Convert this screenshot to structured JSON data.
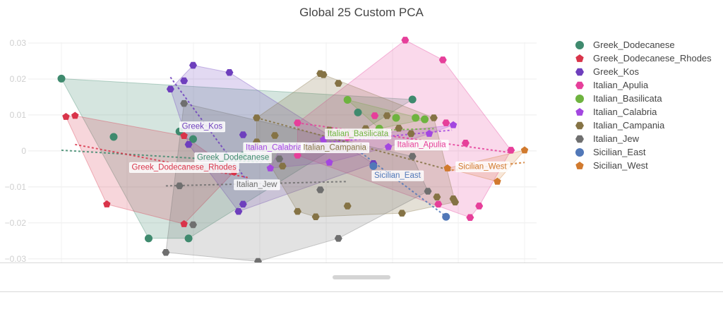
{
  "chart_data": {
    "type": "scatter",
    "title": "Global 25 Custom PCA",
    "xlabel": "",
    "ylabel": "",
    "xlim": [
      -0.0475,
      0.0545
    ],
    "ylim": [
      -0.031,
      0.0345
    ],
    "grid": true,
    "y_ticks": [
      {
        "value": 0.03,
        "label": "0.03"
      },
      {
        "value": 0.02,
        "label": "0.02"
      },
      {
        "value": 0.01,
        "label": "0.01"
      },
      {
        "value": 0,
        "label": "0"
      },
      {
        "value": -0.01,
        "label": "−0.01"
      },
      {
        "value": -0.02,
        "label": "−0.02"
      },
      {
        "value": -0.03,
        "label": "−0.03"
      }
    ],
    "legend_position": "right",
    "series": [
      {
        "name": "Greek_Dodecanese",
        "color": "#3f8a6e",
        "marker": "circle",
        "label": "Greek_Dodecanese",
        "label_at": [
          -0.0097,
          -0.0017
        ],
        "hull_fill": "rgba(63,138,110,0.22)",
        "trend": [
          [
            -0.0475,
            0.0002
          ],
          [
            -0.003,
            -0.0032
          ]
        ],
        "points": [
          [
            -0.0475,
            0.0201
          ],
          [
            -0.036,
            0.0039
          ],
          [
            -0.0283,
            -0.0243
          ],
          [
            -0.0215,
            0.0054
          ],
          [
            -0.0195,
            -0.0243
          ],
          [
            -0.0185,
            0.0033
          ],
          [
            -0.0075,
            -0.0013
          ],
          [
            0.0178,
            0.0107
          ],
          [
            0.0298,
            0.0143
          ]
        ]
      },
      {
        "name": "Greek_Dodecanese_Rhodes",
        "color": "#d9344a",
        "marker": "pentagon",
        "label": "Greek_Dodecanese_Rhodes",
        "label_at": [
          -0.0205,
          -0.0044
        ],
        "hull_fill": "rgba(217,52,74,0.2)",
        "trend": [
          [
            -0.0445,
            0.0018
          ],
          [
            -0.006,
            -0.0075
          ]
        ],
        "points": [
          [
            -0.0445,
            0.0098
          ],
          [
            -0.0375,
            -0.0148
          ],
          [
            -0.0205,
            -0.0203
          ],
          [
            -0.0205,
            0.0042
          ],
          [
            -0.0095,
            -0.0058
          ],
          [
            -0.0465,
            0.0095
          ]
        ]
      },
      {
        "name": "Greek_Kos",
        "color": "#6e3fbd",
        "marker": "hexagon",
        "label": "Greek_Kos",
        "label_at": [
          -0.0165,
          0.0069
        ],
        "hull_fill": "rgba(110,63,189,0.2)",
        "trend": [
          [
            -0.0235,
            0.0205
          ],
          [
            -0.0065,
            -0.0085
          ]
        ],
        "points": [
          [
            -0.0235,
            0.0172
          ],
          [
            -0.0205,
            0.0195
          ],
          [
            -0.0185,
            0.0238
          ],
          [
            -0.0105,
            0.0218
          ],
          [
            -0.0075,
            0.0045
          ],
          [
            -0.0085,
            -0.0168
          ],
          [
            -0.0075,
            -0.0148
          ],
          [
            -0.0195,
            0.0018
          ],
          [
            0.0008,
            0.0013
          ],
          [
            0.0212,
            -0.0035
          ]
        ]
      },
      {
        "name": "Italian_Apulia",
        "color": "#e63f9a",
        "marker": "hexagon",
        "label": "Italian_Apulia",
        "label_at": [
          0.0318,
          0.0018
        ],
        "hull_fill": "rgba(230,63,154,0.2)",
        "trend": [
          [
            0.0045,
            0.0078
          ],
          [
            0.0515,
            -0.0005
          ]
        ],
        "points": [
          [
            0.0045,
            0.0078
          ],
          [
            0.0045,
            -0.0012
          ],
          [
            0.0155,
            0.0038
          ],
          [
            0.0215,
            0.0098
          ],
          [
            0.0282,
            0.0308
          ],
          [
            0.0365,
            0.0253
          ],
          [
            0.0415,
            0.0022
          ],
          [
            0.0425,
            -0.0185
          ],
          [
            0.0445,
            -0.0153
          ],
          [
            0.0515,
            0.0002
          ],
          [
            0.0355,
            -0.0148
          ],
          [
            0.0372,
            0.0078
          ]
        ]
      },
      {
        "name": "Italian_Basilicata",
        "color": "#6eb33f",
        "marker": "circle",
        "label": "Italian_Basilicata",
        "label_at": [
          0.0178,
          0.0049
        ],
        "hull_fill": "rgba(110,179,63,0.2)",
        "trend": [
          [
            0.0155,
            0.0055
          ],
          [
            0.0345,
            0.0062
          ]
        ],
        "points": [
          [
            0.0155,
            0.0142
          ],
          [
            0.0262,
            0.0092
          ],
          [
            0.0305,
            0.0092
          ],
          [
            0.0325,
            0.0088
          ],
          [
            0.0225,
            0.0062
          ]
        ]
      },
      {
        "name": "Italian_Calabria",
        "color": "#a347e0",
        "marker": "pentagon",
        "label": "Italian_Calabria",
        "label_at": [
          -0.0007,
          0.0011
        ],
        "hull_fill": "rgba(163,71,224,0.2)",
        "trend": [
          [
            -0.0015,
            0.0008
          ],
          [
            0.0385,
            0.0058
          ]
        ],
        "points": [
          [
            -0.0015,
            -0.0048
          ],
          [
            0.0008,
            0.0011
          ],
          [
            0.0335,
            0.0048
          ],
          [
            0.0388,
            0.0072
          ],
          [
            0.0245,
            0.0011
          ],
          [
            0.0102,
            0.0031
          ],
          [
            0.0115,
            -0.0032
          ]
        ]
      },
      {
        "name": "Italian_Campania",
        "color": "#857345",
        "marker": "hexagon",
        "label": "Italian_Campania",
        "label_at": [
          0.0127,
          0.0011
        ],
        "hull_fill": "rgba(133,115,69,0.22)",
        "trend": [
          [
            -0.0045,
            0.0092
          ],
          [
            0.0385,
            -0.0055
          ]
        ],
        "points": [
          [
            -0.0045,
            0.0092
          ],
          [
            -0.0045,
            0.0025
          ],
          [
            0.0012,
            -0.0042
          ],
          [
            0.0045,
            -0.0168
          ],
          [
            0.0095,
            0.0215
          ],
          [
            0.0102,
            0.0212
          ],
          [
            0.0135,
            0.0188
          ],
          [
            0.0085,
            -0.0183
          ],
          [
            0.0155,
            -0.0153
          ],
          [
            0.0195,
            0.0062
          ],
          [
            0.0242,
            0.0098
          ],
          [
            0.0268,
            0.0063
          ],
          [
            0.0295,
            0.0048
          ],
          [
            0.0345,
            0.0092
          ],
          [
            0.0352,
            -0.0128
          ],
          [
            0.0388,
            -0.0133
          ],
          [
            0.0392,
            -0.0142
          ],
          [
            0.0275,
            -0.0173
          ],
          [
            -0.0005,
            0.0043
          ],
          [
            0.0115,
            0.0058
          ]
        ]
      },
      {
        "name": "Italian_Jew",
        "color": "#6f6f6f",
        "marker": "hexagon",
        "label": "Italian_Jew",
        "label_at": [
          -0.0045,
          -0.0092
        ],
        "hull_fill": "rgba(111,111,111,0.2)",
        "trend": [
          [
            -0.0245,
            -0.0097
          ],
          [
            0.0155,
            -0.0085
          ]
        ],
        "points": [
          [
            -0.0245,
            -0.0282
          ],
          [
            -0.0215,
            -0.0097
          ],
          [
            -0.0185,
            -0.0205
          ],
          [
            -0.0205,
            0.0132
          ],
          [
            -0.0042,
            -0.0307
          ],
          [
            0.0135,
            -0.0243
          ],
          [
            0.0095,
            -0.0108
          ],
          [
            0.0005,
            -0.0022
          ],
          [
            -0.0055,
            0.0008
          ],
          [
            0.0298,
            -0.0015
          ],
          [
            0.0332,
            -0.0112
          ]
        ]
      },
      {
        "name": "Sicilian_East",
        "color": "#5178b8",
        "marker": "circle",
        "label": "Sicilian_East",
        "label_at": [
          0.0265,
          -0.0067
        ],
        "hull_fill": "rgba(81,120,184,0.15)",
        "trend": [
          [
            0.0185,
            -0.0005
          ],
          [
            0.0375,
            -0.0185
          ]
        ],
        "points": [
          [
            0.0372,
            -0.0183
          ],
          [
            0.0212,
            -0.0042
          ]
        ]
      },
      {
        "name": "Sicilian_West",
        "color": "#d17a2e",
        "marker": "pentagon",
        "label": "Sicilian_West",
        "label_at": [
          0.0452,
          -0.0042
        ],
        "hull_fill": "rgba(209,122,46,0.18)",
        "trend": [
          [
            0.0375,
            -0.0055
          ],
          [
            0.0545,
            -0.0032
          ]
        ],
        "points": [
          [
            0.0545,
            0.0002
          ],
          [
            0.0485,
            -0.0085
          ],
          [
            0.0375,
            -0.0048
          ]
        ]
      }
    ]
  },
  "ui": {
    "scrollbar_label": ""
  }
}
